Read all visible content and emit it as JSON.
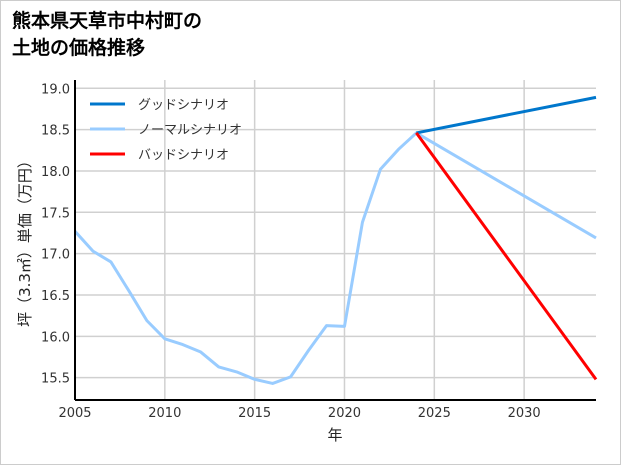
{
  "chart_data": {
    "type": "line",
    "title_line1": "熊本県天草市中村町の",
    "title_line2": "土地の価格推移",
    "xlabel": "年",
    "ylabel": "坪（3.3㎡）単価（万円）",
    "xlim": [
      2005,
      2034
    ],
    "ylim": [
      15.23,
      19.1
    ],
    "xticks": [
      2005,
      2010,
      2015,
      2020,
      2025,
      2030
    ],
    "yticks": [
      15.5,
      16.0,
      16.5,
      17.0,
      17.5,
      18.0,
      18.5,
      19.0
    ],
    "grid": true,
    "legend_position": "top-left",
    "series": [
      {
        "name": "グッドシナリオ",
        "color": "#0077cc",
        "x": [
          2024,
          2034
        ],
        "y": [
          18.46,
          18.89
        ]
      },
      {
        "name": "ノーマルシナリオ",
        "color": "#99ccff",
        "x": [
          2005,
          2006,
          2007,
          2008,
          2009,
          2010,
          2011,
          2012,
          2013,
          2014,
          2015,
          2016,
          2017,
          2018,
          2019,
          2020,
          2021,
          2022,
          2023,
          2024,
          2034
        ],
        "y": [
          17.27,
          17.03,
          16.9,
          16.55,
          16.19,
          15.97,
          15.9,
          15.81,
          15.63,
          15.57,
          15.48,
          15.43,
          15.51,
          15.83,
          16.13,
          16.12,
          17.38,
          18.02,
          18.26,
          18.46,
          17.19
        ]
      },
      {
        "name": "バッドシナリオ",
        "color": "#ff0000",
        "x": [
          2024,
          2034
        ],
        "y": [
          18.46,
          15.48
        ]
      }
    ]
  }
}
